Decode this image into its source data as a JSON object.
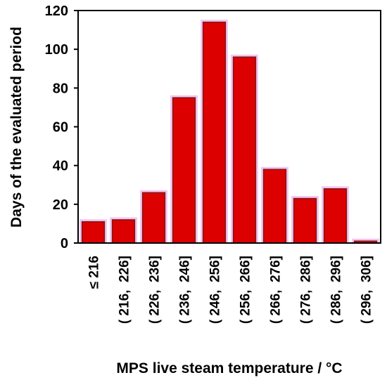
{
  "chart_data": {
    "type": "bar",
    "title": "",
    "xlabel": "MPS live steam temperature / °C",
    "ylabel": "Days of the evaluated period",
    "categories": [
      "≤ 216",
      "( 216,  226]",
      "( 226,  236]",
      "( 236,  246]",
      "( 246,  256]",
      "( 256,  266]",
      "( 266,  276]",
      "( 276,  286]",
      "( 286,  296]",
      "( 296,  306]"
    ],
    "values": [
      11,
      12,
      26,
      75,
      114,
      96,
      38,
      23,
      28,
      1
    ],
    "ylim": [
      0,
      120
    ],
    "yticks": [
      0,
      20,
      40,
      60,
      80,
      100,
      120
    ],
    "grid": false,
    "legend": "none",
    "colors": {
      "bar_fill": "#dd0000",
      "bar_stroke": "#7a1a1a",
      "bar_glow": "#f2c6f0",
      "axis": "#000000",
      "text": "#000000"
    }
  }
}
